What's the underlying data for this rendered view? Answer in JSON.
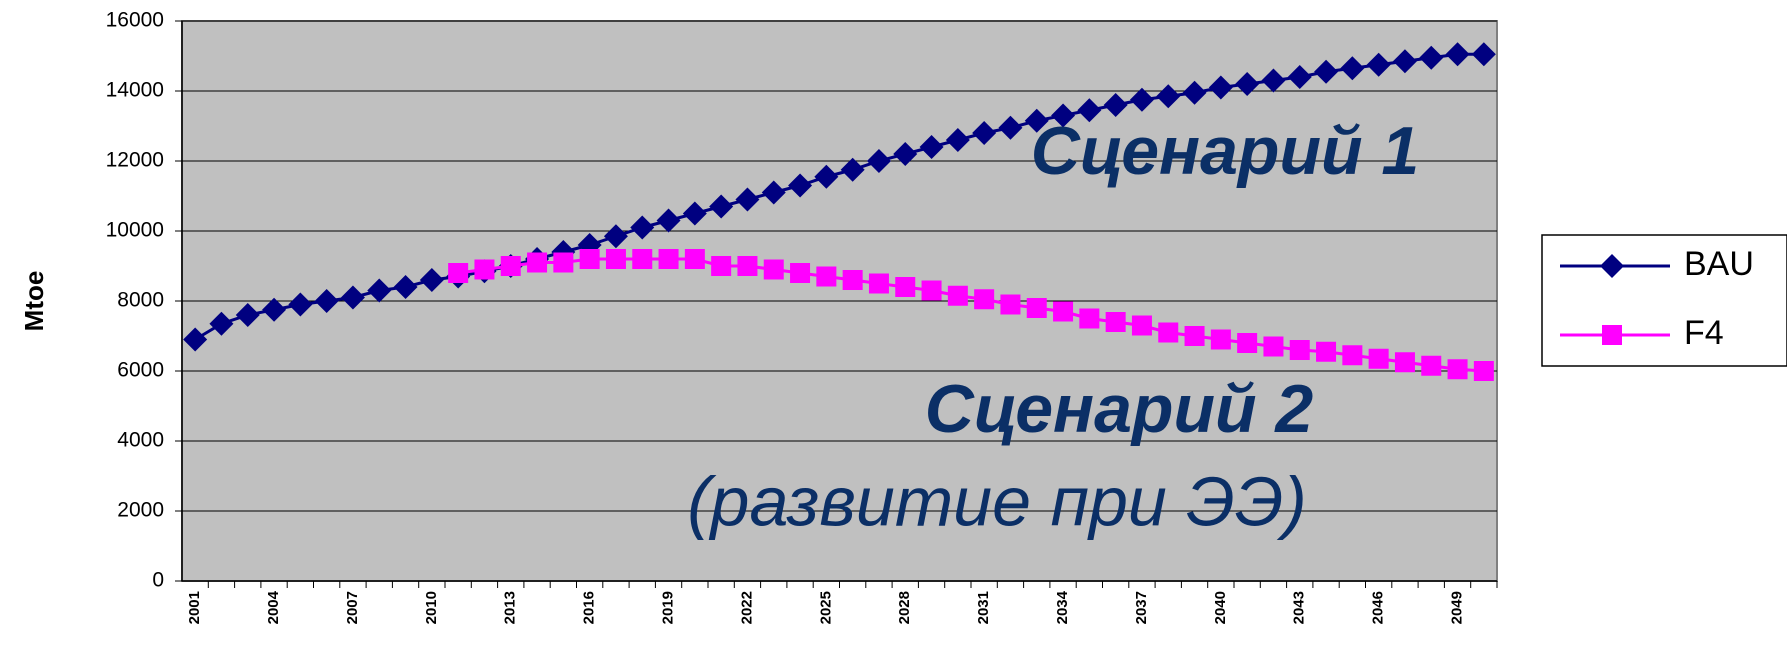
{
  "chart_data": {
    "type": "line",
    "y_label": "Mtoe",
    "categories": [
      "2001",
      null,
      null,
      "2004",
      null,
      null,
      "2007",
      null,
      null,
      "2010",
      null,
      null,
      "2013",
      null,
      null,
      "2016",
      null,
      null,
      "2019",
      null,
      null,
      "2022",
      null,
      null,
      "2025",
      null,
      null,
      "2028",
      null,
      null,
      "2031",
      null,
      null,
      "2034",
      null,
      null,
      "2037",
      null,
      null,
      "2040",
      null,
      null,
      "2043",
      null,
      null,
      "2046",
      null,
      null,
      "2049",
      null
    ],
    "series": [
      {
        "name": "BAU",
        "color": "#000080",
        "marker": "diamond",
        "values": [
          6900,
          7350,
          7600,
          7750,
          7900,
          8000,
          8100,
          8300,
          8400,
          8600,
          8700,
          8850,
          9000,
          9200,
          9400,
          9600,
          9850,
          10100,
          10300,
          10500,
          10700,
          10900,
          11100,
          11300,
          11550,
          11750,
          12000,
          12200,
          12400,
          12600,
          12800,
          12950,
          13150,
          13300,
          13450,
          13600,
          13750,
          13850,
          13950,
          14100,
          14200,
          14300,
          14400,
          14550,
          14650,
          14750,
          14850,
          14950,
          15050,
          15050
        ]
      },
      {
        "name": "F4",
        "color": "#ff00ff",
        "marker": "square",
        "values": [
          null,
          null,
          null,
          null,
          null,
          null,
          null,
          null,
          null,
          null,
          8800,
          8900,
          9000,
          9100,
          9100,
          9200,
          9200,
          9200,
          9200,
          9200,
          9000,
          9000,
          8900,
          8800,
          8700,
          8600,
          8500,
          8400,
          8300,
          8150,
          8050,
          7900,
          7800,
          7700,
          7500,
          7400,
          7300,
          7100,
          7000,
          6900,
          6800,
          6700,
          6600,
          6550,
          6450,
          6350,
          6250,
          6150,
          6050,
          6000
        ]
      }
    ],
    "ylim": [
      0,
      16000
    ],
    "yticks": [
      0,
      2000,
      4000,
      6000,
      8000,
      10000,
      12000,
      14000,
      16000
    ],
    "grid": true,
    "legend": "right",
    "annotations": [
      "Сценарий 1",
      "Сценарий 2",
      "(развитие при ЭЭ)"
    ]
  }
}
